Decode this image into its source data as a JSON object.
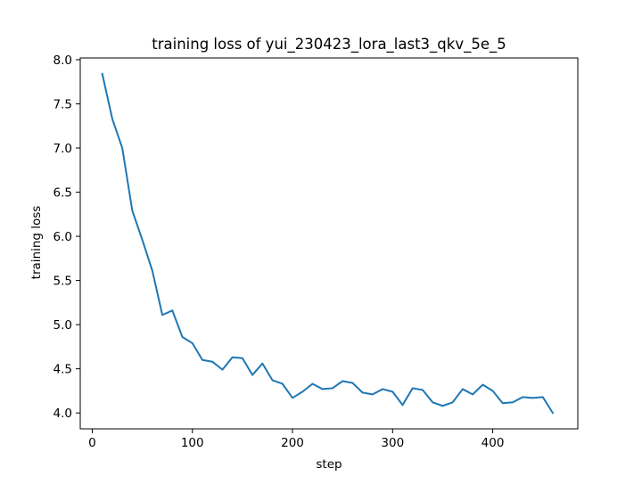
{
  "chart_data": {
    "type": "line",
    "title": "training loss of yui_230423_lora_last3_qkv_5e_5",
    "xlabel": "step",
    "ylabel": "training loss",
    "xlim": [
      -12,
      485
    ],
    "ylim": [
      3.82,
      8.02
    ],
    "xticks": [
      0,
      100,
      200,
      300,
      400
    ],
    "yticks": [
      4.0,
      4.5,
      5.0,
      5.5,
      6.0,
      6.5,
      7.0,
      7.5,
      8.0
    ],
    "ytick_labels": [
      "4.0",
      "4.5",
      "5.0",
      "5.5",
      "6.0",
      "6.5",
      "7.0",
      "7.5",
      "8.0"
    ],
    "grid": false,
    "series": [
      {
        "color": "#1f77b4",
        "x": [
          10,
          20,
          30,
          40,
          50,
          60,
          70,
          80,
          90,
          100,
          110,
          120,
          130,
          140,
          150,
          160,
          170,
          180,
          190,
          200,
          210,
          220,
          230,
          240,
          250,
          260,
          270,
          280,
          290,
          300,
          310,
          320,
          330,
          340,
          350,
          360,
          370,
          380,
          390,
          400,
          410,
          420,
          430,
          440,
          450,
          460
        ],
        "y": [
          7.84,
          7.33,
          7.0,
          6.29,
          5.96,
          5.61,
          5.11,
          5.16,
          4.86,
          4.79,
          4.6,
          4.58,
          4.49,
          4.63,
          4.62,
          4.43,
          4.56,
          4.37,
          4.33,
          4.17,
          4.24,
          4.33,
          4.27,
          4.28,
          4.36,
          4.34,
          4.23,
          4.21,
          4.27,
          4.24,
          4.09,
          4.28,
          4.26,
          4.12,
          4.08,
          4.12,
          4.27,
          4.21,
          4.32,
          4.25,
          4.11,
          4.12,
          4.18,
          4.17,
          4.18,
          4.0
        ]
      }
    ]
  }
}
